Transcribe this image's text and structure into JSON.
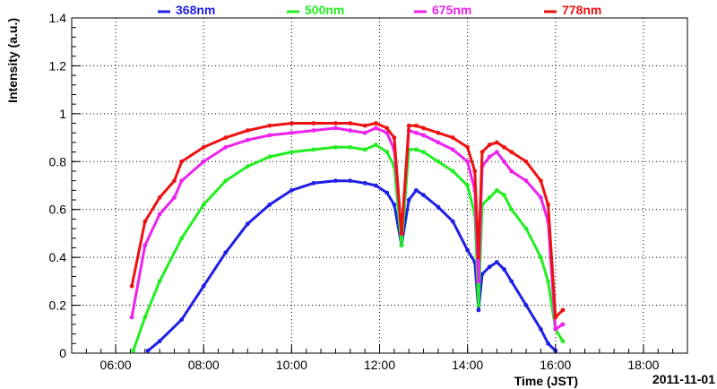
{
  "chart_data": {
    "type": "scatter",
    "xlabel": "Time (JST)",
    "ylabel": "Intensity (a.u.)",
    "date_label": "2011-11-01",
    "xlim": [
      "05:00",
      "19:00"
    ],
    "ylim": [
      0,
      1.4
    ],
    "x_ticks": [
      "06:00",
      "08:00",
      "10:00",
      "12:00",
      "14:00",
      "16:00",
      "18:00"
    ],
    "y_ticks": [
      "0",
      "0.2",
      "0.4",
      "0.6",
      "0.8",
      "1",
      "1.2",
      "1.4"
    ],
    "grid": true,
    "legend_position": "top",
    "colors": {
      "368nm": "#1f1fe6",
      "500nm": "#22ee22",
      "675nm": "#ee22ee",
      "778nm": "#ee1111"
    },
    "series": [
      {
        "name": "368nm",
        "x": [
          "06:44",
          "07:00",
          "07:30",
          "08:00",
          "08:30",
          "09:00",
          "09:30",
          "10:00",
          "10:30",
          "11:00",
          "11:20",
          "11:40",
          "11:55",
          "12:10",
          "12:20",
          "12:30",
          "12:40",
          "12:50",
          "13:00",
          "13:20",
          "13:40",
          "14:00",
          "14:10",
          "14:15",
          "14:20",
          "14:30",
          "14:40",
          "14:50",
          "15:00",
          "15:20",
          "15:40",
          "15:50",
          "16:00"
        ],
        "y": [
          0.01,
          0.05,
          0.14,
          0.28,
          0.42,
          0.54,
          0.62,
          0.68,
          0.71,
          0.72,
          0.72,
          0.71,
          0.7,
          0.67,
          0.62,
          0.45,
          0.64,
          0.68,
          0.66,
          0.61,
          0.55,
          0.43,
          0.38,
          0.18,
          0.33,
          0.36,
          0.38,
          0.35,
          0.3,
          0.2,
          0.1,
          0.04,
          0.01
        ]
      },
      {
        "name": "500nm",
        "x": [
          "06:24",
          "06:40",
          "07:00",
          "07:30",
          "08:00",
          "08:30",
          "09:00",
          "09:30",
          "10:00",
          "10:30",
          "11:00",
          "11:20",
          "11:40",
          "11:55",
          "12:10",
          "12:20",
          "12:30",
          "12:40",
          "12:50",
          "13:00",
          "13:20",
          "13:40",
          "14:00",
          "14:10",
          "14:15",
          "14:20",
          "14:30",
          "14:40",
          "14:50",
          "15:00",
          "15:20",
          "15:40",
          "15:50",
          "16:00",
          "16:10"
        ],
        "y": [
          0.01,
          0.15,
          0.3,
          0.48,
          0.62,
          0.72,
          0.78,
          0.82,
          0.84,
          0.85,
          0.86,
          0.86,
          0.85,
          0.87,
          0.84,
          0.78,
          0.45,
          0.85,
          0.85,
          0.84,
          0.8,
          0.76,
          0.7,
          0.58,
          0.2,
          0.62,
          0.65,
          0.68,
          0.66,
          0.6,
          0.52,
          0.4,
          0.3,
          0.1,
          0.05
        ]
      },
      {
        "name": "675nm",
        "x": [
          "06:22",
          "06:40",
          "07:00",
          "07:20",
          "07:30",
          "08:00",
          "08:30",
          "09:00",
          "09:30",
          "10:00",
          "10:30",
          "11:00",
          "11:20",
          "11:40",
          "11:55",
          "12:10",
          "12:20",
          "12:30",
          "12:40",
          "12:50",
          "13:00",
          "13:20",
          "13:40",
          "14:00",
          "14:10",
          "14:15",
          "14:20",
          "14:30",
          "14:40",
          "14:50",
          "15:00",
          "15:20",
          "15:40",
          "15:50",
          "16:00",
          "16:10"
        ],
        "y": [
          0.15,
          0.45,
          0.58,
          0.65,
          0.72,
          0.8,
          0.86,
          0.89,
          0.91,
          0.92,
          0.93,
          0.94,
          0.93,
          0.92,
          0.94,
          0.92,
          0.85,
          0.5,
          0.93,
          0.92,
          0.91,
          0.88,
          0.85,
          0.8,
          0.68,
          0.3,
          0.78,
          0.82,
          0.84,
          0.8,
          0.76,
          0.72,
          0.65,
          0.55,
          0.1,
          0.12
        ]
      },
      {
        "name": "778nm",
        "x": [
          "06:22",
          "06:40",
          "07:00",
          "07:20",
          "07:30",
          "08:00",
          "08:30",
          "09:00",
          "09:30",
          "10:00",
          "10:30",
          "11:00",
          "11:20",
          "11:40",
          "11:55",
          "12:10",
          "12:20",
          "12:30",
          "12:40",
          "12:50",
          "13:00",
          "13:20",
          "13:40",
          "14:00",
          "14:10",
          "14:15",
          "14:20",
          "14:30",
          "14:40",
          "14:50",
          "15:00",
          "15:20",
          "15:40",
          "15:50",
          "16:00",
          "16:10"
        ],
        "y": [
          0.28,
          0.55,
          0.65,
          0.72,
          0.8,
          0.86,
          0.9,
          0.93,
          0.95,
          0.96,
          0.96,
          0.96,
          0.96,
          0.95,
          0.96,
          0.94,
          0.9,
          0.5,
          0.95,
          0.95,
          0.94,
          0.92,
          0.9,
          0.86,
          0.76,
          0.4,
          0.84,
          0.87,
          0.88,
          0.86,
          0.84,
          0.8,
          0.72,
          0.62,
          0.15,
          0.18
        ]
      }
    ]
  }
}
